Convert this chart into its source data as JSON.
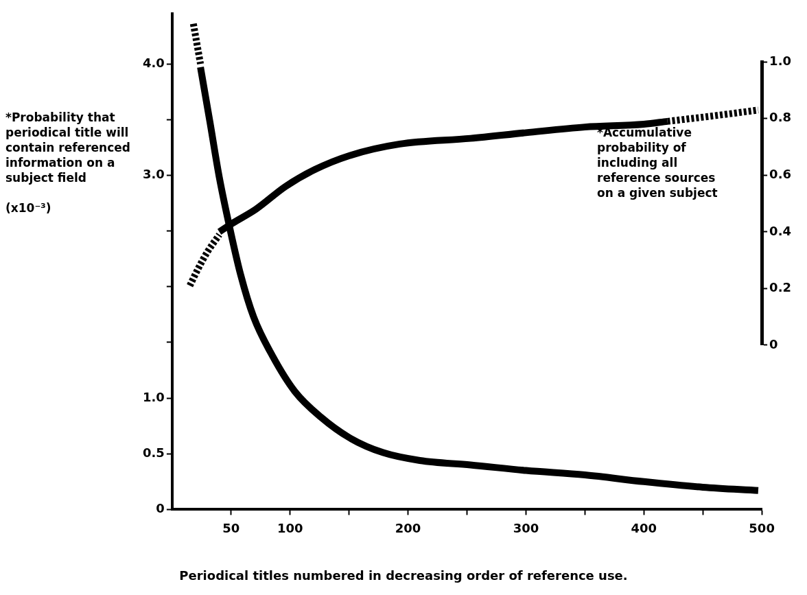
{
  "chart_data": {
    "type": "line",
    "ylabel": "*Probability that periodical title will contain referenced information on a subject field\n\n(x10⁻³)",
    "y2label": "*Accumulative probability of including all reference sources on a given subject",
    "xlabel": "Periodical titles numbered in decreasing order of reference use.",
    "marker": "none",
    "xlim": [
      0,
      500
    ],
    "xticks": [
      50,
      100,
      {
        "value": 150,
        "label": null
      },
      200,
      {
        "value": 250,
        "label": null
      },
      300,
      {
        "value": 350,
        "label": null
      },
      400,
      {
        "value": 450,
        "label": null
      },
      500
    ],
    "ylim": [
      0,
      4.45
    ],
    "yticks": [
      0,
      0.5,
      {
        "value": 1,
        "label": "1.0"
      },
      {
        "value": 1.5,
        "label": null
      },
      {
        "value": 2,
        "label": null
      },
      {
        "value": 2.5,
        "label": null
      },
      {
        "value": 3,
        "label": "3.0"
      },
      {
        "value": 3.5,
        "label": null
      },
      {
        "value": 4,
        "label": "4.0"
      }
    ],
    "y2lim": [
      0,
      1
    ],
    "y2ticks": [
      0,
      0.2,
      0.4,
      0.6,
      0.8,
      {
        "value": 1,
        "label": "1.0"
      }
    ],
    "series": [
      {
        "type": "line",
        "axis": "y",
        "line_style": "dashed",
        "color": "#000000",
        "x": [
          18,
          21,
          24
        ],
        "values": [
          4.36,
          4.18,
          4.0
        ]
      },
      {
        "type": "line",
        "axis": "y",
        "line_style": "solid",
        "color": "#000000",
        "x": [
          24,
          32,
          40,
          49,
          58,
          69,
          85,
          104,
          126,
          151,
          179,
          210,
          253,
          300,
          350,
          400,
          450,
          497
        ],
        "values": [
          3.97,
          3.48,
          2.98,
          2.52,
          2.11,
          1.73,
          1.38,
          1.06,
          0.83,
          0.64,
          0.51,
          0.44,
          0.4,
          0.35,
          0.31,
          0.25,
          0.2,
          0.17
        ]
      },
      {
        "type": "line",
        "axis": "y2",
        "line_style": "dashed",
        "color": "#000000",
        "x": [
          15,
          22,
          30,
          40
        ],
        "values": [
          0.21,
          0.27,
          0.33,
          0.39
        ]
      },
      {
        "type": "line",
        "axis": "y2",
        "line_style": "solid",
        "color": "#000000",
        "x": [
          40,
          51,
          71,
          96,
          121,
          151,
          193,
          253,
          300,
          350,
          400,
          420
        ],
        "values": [
          0.4,
          0.43,
          0.48,
          0.56,
          0.62,
          0.67,
          0.71,
          0.73,
          0.75,
          0.77,
          0.78,
          0.79
        ]
      },
      {
        "type": "line",
        "axis": "y2",
        "line_style": "dashed",
        "color": "#000000",
        "x": [
          420,
          460,
          497
        ],
        "values": [
          0.79,
          0.81,
          0.83
        ]
      }
    ]
  }
}
